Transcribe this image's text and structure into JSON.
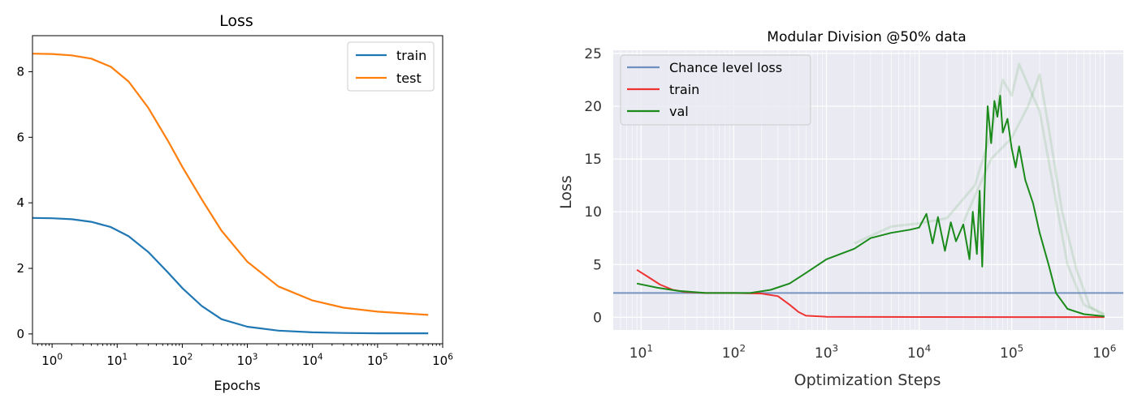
{
  "chart_data": [
    {
      "type": "line",
      "title": "Loss",
      "xlabel": "Epochs",
      "ylabel": "",
      "xscale": "log",
      "xlim": [
        0.5,
        1000000
      ],
      "ylim": [
        -0.3,
        9.1
      ],
      "grid": false,
      "legend": "top-right",
      "xticks": [
        {
          "value": 1,
          "base": "10",
          "exp": "0"
        },
        {
          "value": 10,
          "base": "10",
          "exp": "1"
        },
        {
          "value": 100,
          "base": "10",
          "exp": "2"
        },
        {
          "value": 1000,
          "base": "10",
          "exp": "3"
        },
        {
          "value": 10000,
          "base": "10",
          "exp": "4"
        },
        {
          "value": 100000,
          "base": "10",
          "exp": "5"
        },
        {
          "value": 1000000,
          "base": "10",
          "exp": "6"
        }
      ],
      "yticks": [
        {
          "value": 0,
          "label": "0"
        },
        {
          "value": 2,
          "label": "2"
        },
        {
          "value": 4,
          "label": "4"
        },
        {
          "value": 6,
          "label": "6"
        },
        {
          "value": 8,
          "label": "8"
        }
      ],
      "series": [
        {
          "name": "train",
          "color": "#1f77b4",
          "points": [
            [
              0.5,
              3.54
            ],
            [
              1,
              3.53
            ],
            [
              2,
              3.5
            ],
            [
              4,
              3.42
            ],
            [
              8,
              3.26
            ],
            [
              15,
              2.98
            ],
            [
              30,
              2.5
            ],
            [
              60,
              1.88
            ],
            [
              100,
              1.4
            ],
            [
              200,
              0.85
            ],
            [
              400,
              0.45
            ],
            [
              1000,
              0.22
            ],
            [
              3000,
              0.1
            ],
            [
              10000,
              0.05
            ],
            [
              30000,
              0.03
            ],
            [
              100000,
              0.02
            ],
            [
              600000,
              0.02
            ]
          ]
        },
        {
          "name": "test",
          "color": "#ff7f0e",
          "points": [
            [
              0.5,
              8.55
            ],
            [
              1,
              8.54
            ],
            [
              2,
              8.5
            ],
            [
              4,
              8.4
            ],
            [
              8,
              8.15
            ],
            [
              15,
              7.7
            ],
            [
              30,
              6.9
            ],
            [
              60,
              5.9
            ],
            [
              100,
              5.1
            ],
            [
              200,
              4.1
            ],
            [
              400,
              3.15
            ],
            [
              1000,
              2.2
            ],
            [
              3000,
              1.45
            ],
            [
              10000,
              1.02
            ],
            [
              30000,
              0.8
            ],
            [
              100000,
              0.68
            ],
            [
              600000,
              0.58
            ]
          ]
        }
      ]
    },
    {
      "type": "line",
      "title": "Modular Division @50% data",
      "xlabel": "Optimization Steps",
      "ylabel": "Loss",
      "xscale": "log",
      "xlim": [
        5,
        1600000
      ],
      "ylim": [
        -1.2,
        25.3
      ],
      "grid": true,
      "legend": "top-left",
      "xticks": [
        {
          "value": 10,
          "base": "10",
          "exp": "1"
        },
        {
          "value": 100,
          "base": "10",
          "exp": "2"
        },
        {
          "value": 1000,
          "base": "10",
          "exp": "3"
        },
        {
          "value": 10000,
          "base": "10",
          "exp": "4"
        },
        {
          "value": 100000,
          "base": "10",
          "exp": "5"
        },
        {
          "value": 1000000,
          "base": "10",
          "exp": "6"
        }
      ],
      "yticks": [
        {
          "value": 0,
          "label": "0"
        },
        {
          "value": 5,
          "label": "5"
        },
        {
          "value": 10,
          "label": "10"
        },
        {
          "value": 15,
          "label": "15"
        },
        {
          "value": 20,
          "label": "20"
        },
        {
          "value": 25,
          "label": "25"
        }
      ],
      "series": [
        {
          "name": "Chance level loss",
          "color": "#6f8fbf",
          "points": [
            [
              5,
              2.3
            ],
            [
              1600000,
              2.3
            ]
          ]
        },
        {
          "name": "train",
          "color": "#ee3333",
          "points": [
            [
              9,
              4.5
            ],
            [
              12,
              3.8
            ],
            [
              16,
              3.1
            ],
            [
              22,
              2.6
            ],
            [
              30,
              2.4
            ],
            [
              50,
              2.3
            ],
            [
              100,
              2.3
            ],
            [
              200,
              2.25
            ],
            [
              300,
              2.0
            ],
            [
              400,
              1.2
            ],
            [
              500,
              0.5
            ],
            [
              600,
              0.15
            ],
            [
              1000,
              0.05
            ],
            [
              10000,
              0.03
            ],
            [
              100000,
              0.02
            ],
            [
              1000000,
              0.02
            ]
          ]
        },
        {
          "name": "val",
          "color": "#1a8a1a",
          "points": [
            [
              9,
              3.2
            ],
            [
              15,
              2.8
            ],
            [
              25,
              2.5
            ],
            [
              50,
              2.3
            ],
            [
              100,
              2.3
            ],
            [
              150,
              2.3
            ],
            [
              250,
              2.6
            ],
            [
              400,
              3.2
            ],
            [
              600,
              4.2
            ],
            [
              1000,
              5.5
            ],
            [
              2000,
              6.5
            ],
            [
              3000,
              7.5
            ],
            [
              5000,
              8.0
            ],
            [
              8000,
              8.3
            ],
            [
              10000,
              8.5
            ],
            [
              12000,
              9.8
            ],
            [
              14000,
              7.0
            ],
            [
              16000,
              9.5
            ],
            [
              19000,
              6.3
            ],
            [
              22000,
              9.0
            ],
            [
              25000,
              7.2
            ],
            [
              30000,
              8.8
            ],
            [
              35000,
              5.5
            ],
            [
              38000,
              10.0
            ],
            [
              42000,
              6.0
            ],
            [
              45000,
              12.0
            ],
            [
              48000,
              4.8
            ],
            [
              52000,
              14.5
            ],
            [
              55000,
              20.0
            ],
            [
              60000,
              16.5
            ],
            [
              65000,
              20.5
            ],
            [
              70000,
              19.0
            ],
            [
              75000,
              21.0
            ],
            [
              80000,
              17.5
            ],
            [
              90000,
              18.8
            ],
            [
              100000,
              16.0
            ],
            [
              110000,
              14.2
            ],
            [
              120000,
              16.2
            ],
            [
              140000,
              13.0
            ],
            [
              170000,
              10.8
            ],
            [
              200000,
              8.0
            ],
            [
              250000,
              5.0
            ],
            [
              300000,
              2.3
            ],
            [
              400000,
              0.8
            ],
            [
              600000,
              0.3
            ],
            [
              1000000,
              0.1
            ]
          ]
        }
      ],
      "shadow_series": [
        {
          "color": "#1a8a1a",
          "points": [
            [
              2000,
              7.0
            ],
            [
              5000,
              8.6
            ],
            [
              10000,
              8.9
            ],
            [
              20000,
              9.4
            ],
            [
              40000,
              12.5
            ],
            [
              60000,
              17.5
            ],
            [
              80000,
              22.5
            ],
            [
              100000,
              21.0
            ],
            [
              120000,
              24.0
            ],
            [
              150000,
              22.0
            ],
            [
              200000,
              19.5
            ],
            [
              300000,
              11.0
            ],
            [
              400000,
              5.0
            ],
            [
              600000,
              1.2
            ],
            [
              1000000,
              0.2
            ]
          ]
        },
        {
          "color": "#1a8a1a",
          "points": [
            [
              30000,
              9.0
            ],
            [
              60000,
              15.0
            ],
            [
              100000,
              17.0
            ],
            [
              150000,
              20.0
            ],
            [
              200000,
              23.0
            ],
            [
              250000,
              18.0
            ],
            [
              350000,
              10.0
            ],
            [
              500000,
              4.5
            ],
            [
              700000,
              1.0
            ],
            [
              1000000,
              0.3
            ]
          ]
        }
      ]
    }
  ]
}
